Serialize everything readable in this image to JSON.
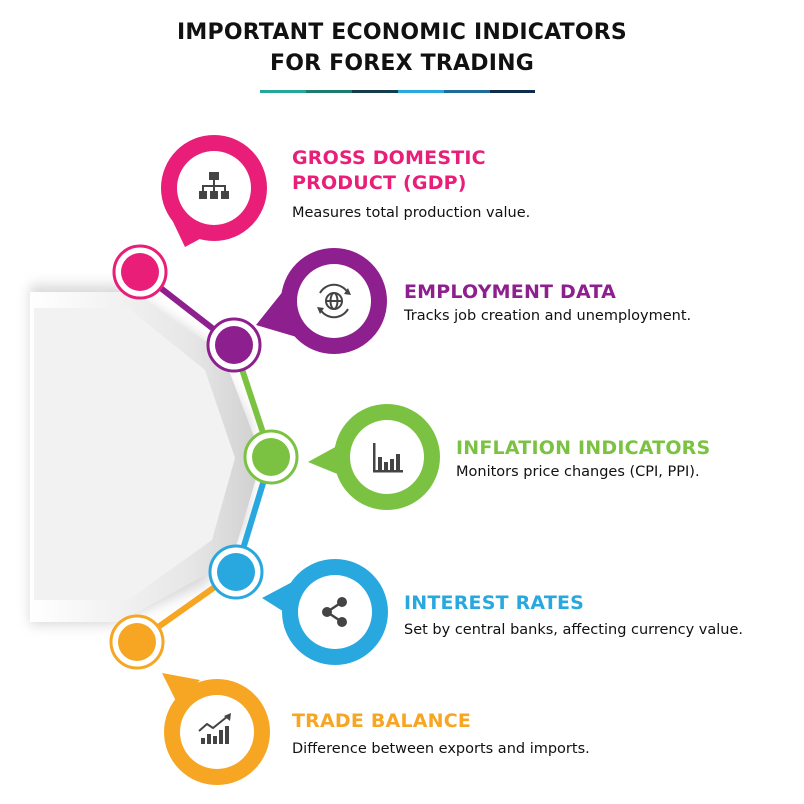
{
  "title": {
    "line1": "IMPORTANT ECONOMIC INDICATORS",
    "line2": "FOR FOREX TRADING"
  },
  "colors": {
    "gdp": "#E91E78",
    "employment": "#8E1F8E",
    "inflation": "#7CC242",
    "interest": "#29A8E0",
    "trade": "#F6A623",
    "underline": [
      "#26A69A",
      "#1E7B6E",
      "#163B4A",
      "#29A8E0",
      "#1E6C99",
      "#0F2D4A"
    ]
  },
  "items": [
    {
      "heading": [
        "GROSS DOMESTIC",
        "PRODUCT (GDP)"
      ],
      "desc": "Measures total production value.",
      "icon": "sitemap-icon"
    },
    {
      "heading": [
        "EMPLOYMENT DATA"
      ],
      "desc": "Tracks job creation and unemployment.",
      "icon": "globe-refresh-icon"
    },
    {
      "heading": [
        "INFLATION INDICATORS"
      ],
      "desc": "Monitors price changes (CPI, PPI).",
      "icon": "bar-chart-icon"
    },
    {
      "heading": [
        "INTEREST RATES"
      ],
      "desc": "Set by central banks, affecting currency value.",
      "icon": "share-icon"
    },
    {
      "heading": [
        "TRADE BALANCE"
      ],
      "desc": "Difference between exports and imports.",
      "icon": "trend-chart-icon"
    }
  ]
}
